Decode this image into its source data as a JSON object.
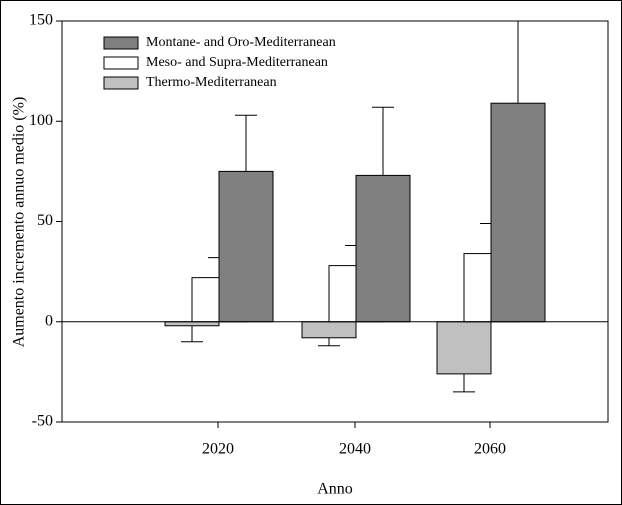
{
  "chart_data": {
    "type": "bar",
    "x_label": "Anno",
    "y_label": "Aumento incremento annuo medio (%)",
    "categories": [
      "2020",
      "2040",
      "2060"
    ],
    "series": [
      {
        "name": "Thermo-Mediterranean",
        "color": "#c0c0c0",
        "values": [
          -2,
          -8,
          -26
        ],
        "errors": [
          8,
          4,
          9
        ]
      },
      {
        "name": "Meso- and Supra-Mediterranean",
        "color": "#ffffff",
        "values": [
          22,
          28,
          34
        ],
        "errors": [
          10,
          10,
          15
        ]
      },
      {
        "name": "Montane- and Oro-Mediterranean",
        "color": "#808080",
        "values": [
          75,
          73,
          109
        ],
        "errors": [
          28,
          34,
          45
        ]
      }
    ],
    "legend_order": [
      2,
      1,
      0
    ],
    "legend": "upper left",
    "ylim": [
      -50,
      150
    ],
    "yticks": [
      -50,
      0,
      50,
      100,
      150
    ]
  }
}
